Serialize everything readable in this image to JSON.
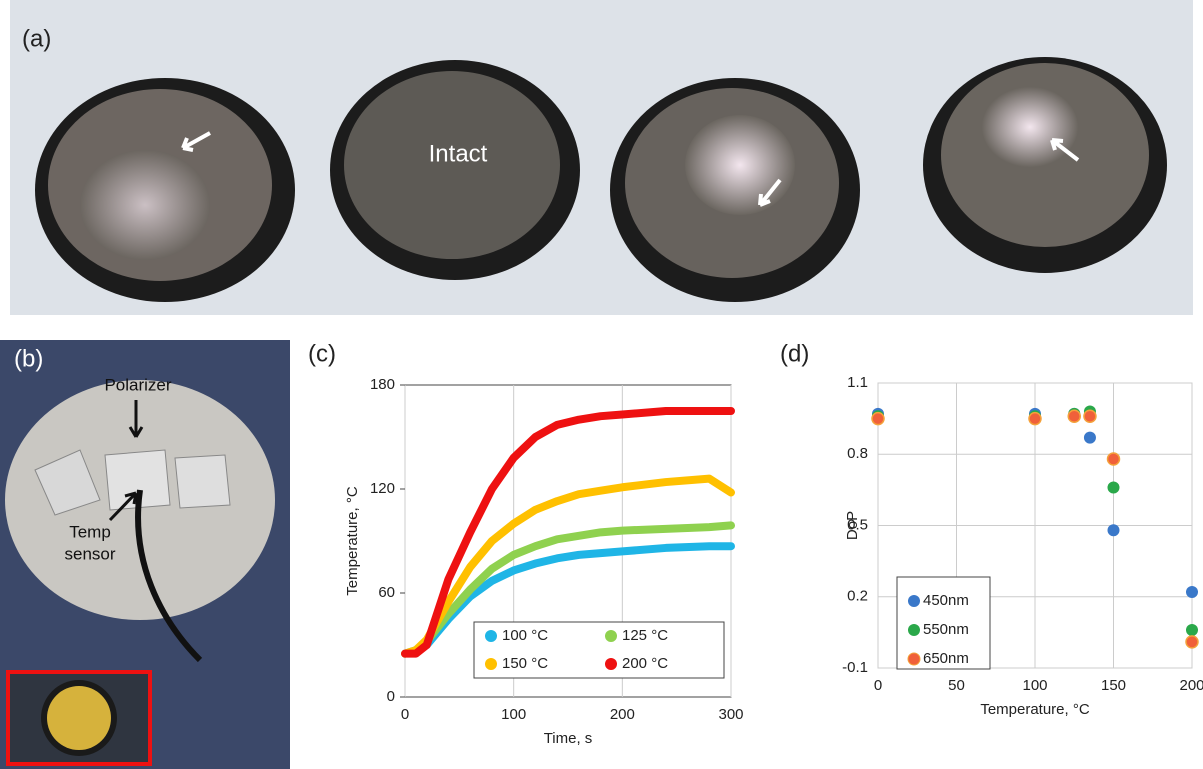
{
  "photos": {
    "a": {
      "label": "(a)",
      "annotation": "Intact"
    },
    "b": {
      "label": "(b)",
      "polarizer": "Polarizer",
      "temp_sensor": [
        "Temp",
        "sensor"
      ]
    }
  },
  "chart_data": [
    {
      "type": "line",
      "label": "(c)",
      "xlabel": "Time, s",
      "ylabel": "Temperature, °C",
      "xlim": [
        0,
        300
      ],
      "xticks": [
        0,
        100,
        200,
        300
      ],
      "ylim": [
        0,
        180
      ],
      "yticks": [
        0,
        60,
        120,
        180
      ],
      "grid": "x",
      "legend": "bottom",
      "x": [
        0,
        10,
        20,
        40,
        60,
        80,
        100,
        120,
        140,
        160,
        180,
        200,
        240,
        280,
        300
      ],
      "series": [
        {
          "name": "100 °C",
          "color": "#1fb5e6",
          "values": [
            25,
            27,
            30,
            45,
            58,
            67,
            73,
            77,
            80,
            82,
            83,
            84,
            86,
            87,
            87
          ]
        },
        {
          "name": "125 °C",
          "color": "#8fd14f",
          "values": [
            25,
            27,
            32,
            48,
            62,
            74,
            82,
            87,
            91,
            93,
            95,
            96,
            97,
            98,
            99
          ]
        },
        {
          "name": "150 °C",
          "color": "#ffc000",
          "values": [
            25,
            27,
            33,
            55,
            75,
            90,
            100,
            108,
            113,
            117,
            119,
            121,
            124,
            126,
            118
          ]
        },
        {
          "name": "200 °C",
          "color": "#ee1111",
          "values": [
            25,
            25,
            30,
            68,
            95,
            120,
            138,
            150,
            157,
            160,
            162,
            163,
            165,
            165,
            165
          ]
        }
      ]
    },
    {
      "type": "scatter",
      "label": "(d)",
      "xlabel": "Temperature, °C",
      "ylabel": "DoP",
      "xlim": [
        0,
        200
      ],
      "xticks": [
        0,
        50,
        100,
        150,
        200
      ],
      "ylim": [
        -0.1,
        1.1
      ],
      "yticks": [
        -0.1,
        0.2,
        0.5,
        0.8,
        1.1
      ],
      "grid": "both",
      "legend": "left",
      "x": [
        0,
        100,
        125,
        135,
        150,
        200
      ],
      "series": [
        {
          "name": "450nm",
          "color": "#3a78c9",
          "values": [
            0.97,
            0.97,
            0.97,
            0.87,
            0.48,
            0.22
          ]
        },
        {
          "name": "550nm",
          "color": "#2aa84a",
          "values": [
            0.96,
            0.96,
            0.97,
            0.98,
            0.66,
            0.06
          ]
        },
        {
          "name": "650nm",
          "color": "#f0603a",
          "values": [
            0.95,
            0.95,
            0.96,
            0.96,
            0.78,
            0.01
          ]
        }
      ]
    }
  ]
}
